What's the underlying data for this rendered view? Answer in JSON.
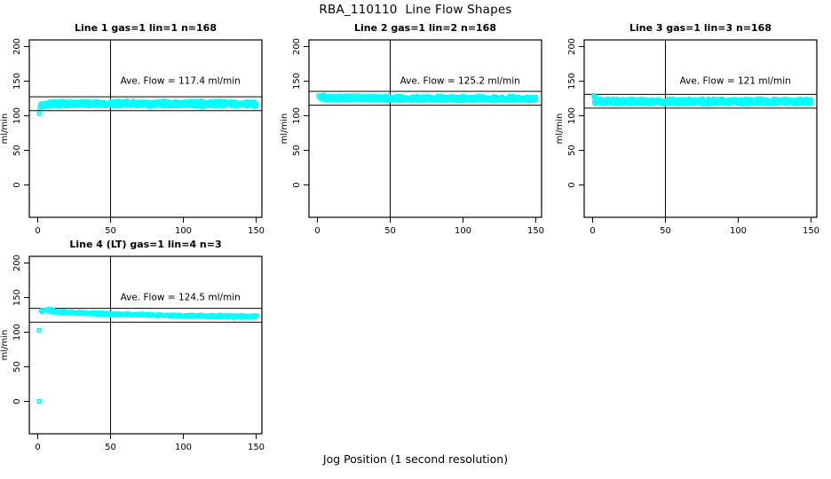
{
  "title": "RBA_110110  Line Flow Shapes",
  "xlabel": "Jog Position (1 second resolution)",
  "chart_data": {
    "type": "scatter",
    "marker": "open-square",
    "marker_color": "#00FFFF",
    "axis_color": "#000000",
    "grid": false,
    "legend": "none",
    "xlim": [
      0,
      150
    ],
    "ylim": [
      0,
      200
    ],
    "x_ticks": [
      0,
      50,
      100,
      150
    ],
    "y_ticks": [
      0,
      50,
      100,
      150,
      200
    ],
    "y_unit_label": "ml/min",
    "vline_x": 50,
    "annotation_anchor": {
      "x": 98,
      "y": 146
    },
    "panels": [
      {
        "title": "Line 1 gas=1 lin=1 n=168",
        "annotation": "Ave. Flow =  117.4  ml/min",
        "ave_flow": 117.4,
        "n_traces": 168,
        "ref_line_upper": 127.4,
        "ref_line_lower": 107.4,
        "band_profile": [
          {
            "x": 1,
            "y": 113.5,
            "s": 5
          },
          {
            "x": 4,
            "y": 116.0,
            "s": 5
          },
          {
            "x": 10,
            "y": 117.2,
            "s": 5
          },
          {
            "x": 40,
            "y": 117.6,
            "s": 5
          },
          {
            "x": 90,
            "y": 117.5,
            "s": 5
          },
          {
            "x": 150,
            "y": 117.0,
            "s": 5
          }
        ],
        "outliers": [
          [
            1,
            103
          ]
        ],
        "n_dots": 1150,
        "seed": 101
      },
      {
        "title": "Line 2 gas=1 lin=2 n=168",
        "annotation": "Ave. Flow =  125.2  ml/min",
        "ave_flow": 125.2,
        "n_traces": 168,
        "ref_line_upper": 135.2,
        "ref_line_lower": 115.2,
        "band_profile": [
          {
            "x": 1,
            "y": 126.5,
            "s": 5
          },
          {
            "x": 6,
            "y": 125.8,
            "s": 4.5
          },
          {
            "x": 60,
            "y": 125.0,
            "s": 4.5
          },
          {
            "x": 150,
            "y": 124.4,
            "s": 4.5
          }
        ],
        "outliers": [
          [
            1,
            129
          ]
        ],
        "n_dots": 1150,
        "seed": 202
      },
      {
        "title": "Line 3 gas=1 lin=3 n=168",
        "annotation": "Ave. Flow =  121  ml/min",
        "ave_flow": 121,
        "n_traces": 168,
        "ref_line_upper": 131,
        "ref_line_lower": 111,
        "band_profile": [
          {
            "x": 1,
            "y": 124.0,
            "s": 8
          },
          {
            "x": 3,
            "y": 121.0,
            "s": 6
          },
          {
            "x": 10,
            "y": 120.4,
            "s": 5
          },
          {
            "x": 80,
            "y": 120.5,
            "s": 5
          },
          {
            "x": 150,
            "y": 120.4,
            "s": 5
          }
        ],
        "outliers": [
          [
            1,
            129.5
          ],
          [
            1,
            127
          ],
          [
            2,
            126.5
          ]
        ],
        "n_dots": 1150,
        "seed": 303
      },
      {
        "title": "Line 4 (LT) gas=1 lin=4 n=3",
        "annotation": "Ave. Flow =  124.5  ml/min",
        "ave_flow": 124.5,
        "n_traces": 3,
        "ref_line_upper": 134.5,
        "ref_line_lower": 114.5,
        "band_profile": [
          {
            "x": 2,
            "y": 131.0,
            "s": 2.5
          },
          {
            "x": 6,
            "y": 132.5,
            "s": 3.5
          },
          {
            "x": 12,
            "y": 129.5,
            "s": 2.5
          },
          {
            "x": 25,
            "y": 128.0,
            "s": 2.2
          },
          {
            "x": 50,
            "y": 126.0,
            "s": 2.2
          },
          {
            "x": 100,
            "y": 123.8,
            "s": 2.2
          },
          {
            "x": 150,
            "y": 122.3,
            "s": 2.8
          }
        ],
        "outliers": [
          [
            1,
            103
          ],
          [
            1,
            0
          ]
        ],
        "n_dots": 700,
        "seed": 404
      }
    ]
  }
}
